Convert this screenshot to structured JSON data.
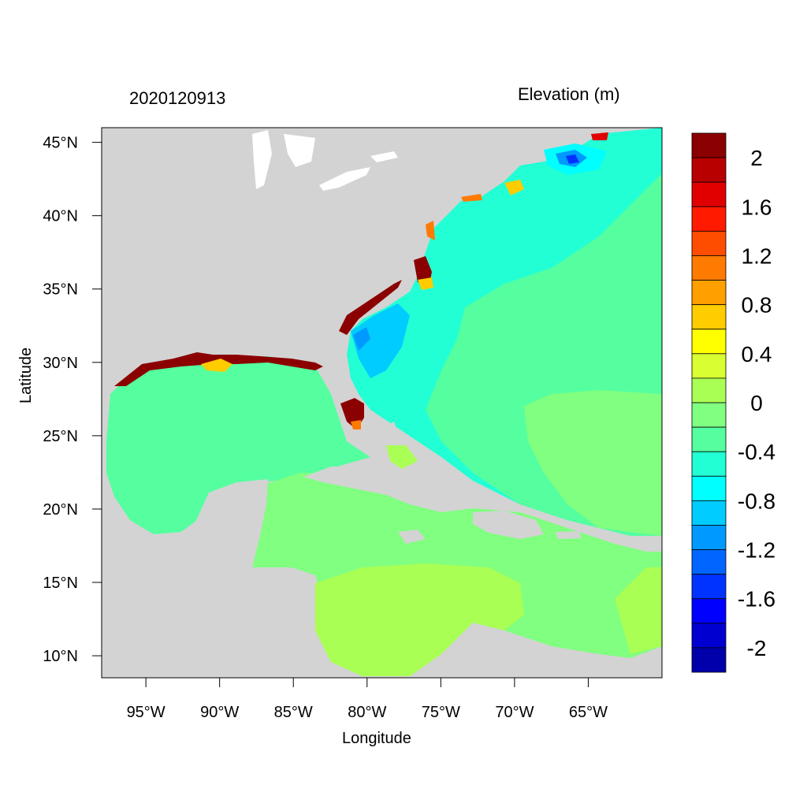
{
  "header": {
    "date": "2020120913",
    "title": "Elevation (m)"
  },
  "axes": {
    "xlabel": "Longitude",
    "ylabel": "Latitude",
    "lon_range": [
      -98,
      -60
    ],
    "lat_range": [
      8.5,
      46
    ],
    "x_ticks": [
      {
        "value": -95,
        "label": "95°W"
      },
      {
        "value": -90,
        "label": "90°W"
      },
      {
        "value": -85,
        "label": "85°W"
      },
      {
        "value": -80,
        "label": "80°W"
      },
      {
        "value": -75,
        "label": "75°W"
      },
      {
        "value": -70,
        "label": "70°W"
      },
      {
        "value": -65,
        "label": "65°W"
      }
    ],
    "y_ticks": [
      {
        "value": 45,
        "label": "45°N"
      },
      {
        "value": 40,
        "label": "40°N"
      },
      {
        "value": 35,
        "label": "35°N"
      },
      {
        "value": 30,
        "label": "30°N"
      },
      {
        "value": 25,
        "label": "25°N"
      },
      {
        "value": 20,
        "label": "20°N"
      },
      {
        "value": 15,
        "label": "15°N"
      },
      {
        "value": 10,
        "label": "10°N"
      }
    ]
  },
  "colorbar": {
    "colors": [
      "#8b0000",
      "#b80000",
      "#e00000",
      "#ff1a00",
      "#ff4d00",
      "#ff7a00",
      "#ff9f00",
      "#ffcc00",
      "#ffff00",
      "#d9ff33",
      "#aaff55",
      "#80ff80",
      "#55ff9f",
      "#22ffd5",
      "#00ffff",
      "#00ccff",
      "#0099ff",
      "#0066ff",
      "#0033ff",
      "#0000ff",
      "#0000d0",
      "#0000aa"
    ],
    "labels": [
      "2",
      "1.6",
      "1.2",
      "0.8",
      "0.4",
      "0",
      "-0.4",
      "-0.8",
      "-1.2",
      "-1.6",
      "-2"
    ]
  },
  "map_colors": {
    "land": "#d3d3d3",
    "lakes": "#ffffff",
    "open_atlantic": "#22ffd5",
    "caribbean": "#80ff80",
    "caribbean_south": "#aaff55",
    "gulf": "#55ff9f",
    "surge_high": "#8b0000"
  }
}
